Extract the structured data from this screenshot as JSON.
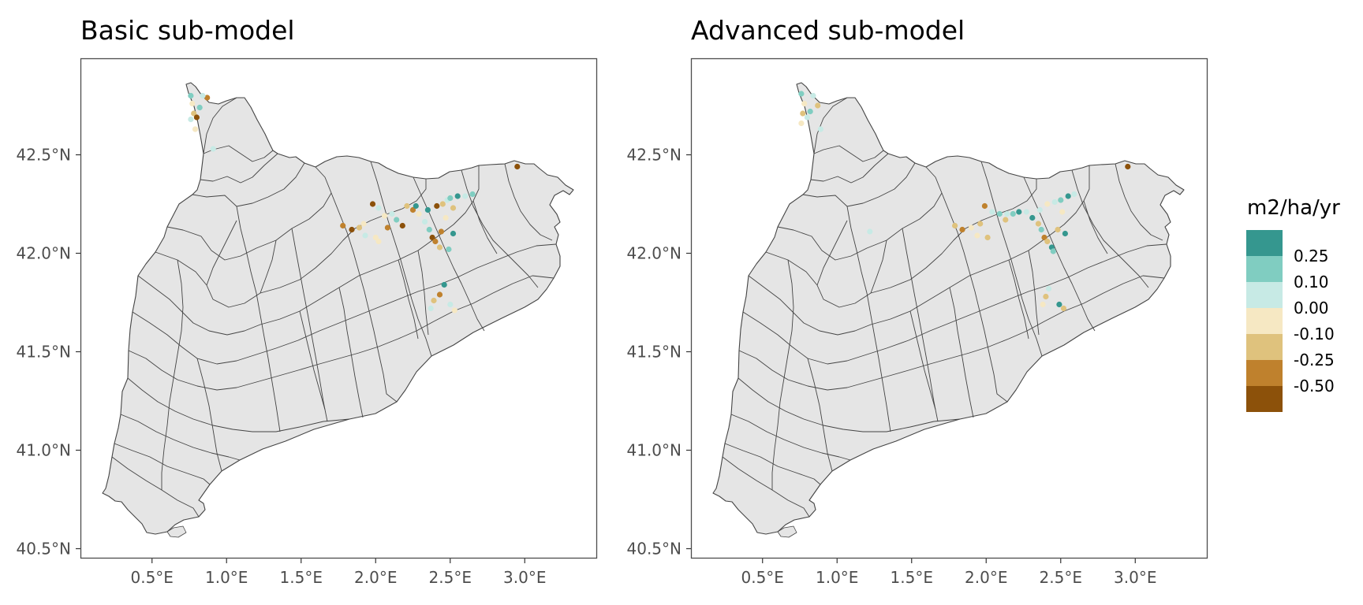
{
  "panels": [
    {
      "title": "Basic sub-model",
      "points": [
        [
          0.76,
          42.8,
          "c1"
        ],
        [
          0.77,
          42.76,
          "c3"
        ],
        [
          0.78,
          42.71,
          "c4"
        ],
        [
          0.8,
          42.69,
          "c6"
        ],
        [
          0.76,
          42.68,
          "c2"
        ],
        [
          0.82,
          42.74,
          "c1"
        ],
        [
          0.87,
          42.79,
          "c5"
        ],
        [
          0.79,
          42.63,
          "c3"
        ],
        [
          0.91,
          42.53,
          "c2"
        ],
        [
          0.84,
          42.8,
          "c2"
        ],
        [
          1.78,
          42.14,
          "c5"
        ],
        [
          1.84,
          42.12,
          "c6"
        ],
        [
          1.89,
          42.13,
          "c4"
        ],
        [
          1.92,
          42.15,
          "c3"
        ],
        [
          1.98,
          42.25,
          "c6"
        ],
        [
          2.02,
          42.23,
          "c2"
        ],
        [
          2.06,
          42.19,
          "c3"
        ],
        [
          2.11,
          42.2,
          "c2"
        ],
        [
          2.14,
          42.17,
          "c1"
        ],
        [
          2.18,
          42.14,
          "c6"
        ],
        [
          2.21,
          42.24,
          "c4"
        ],
        [
          2.25,
          42.22,
          "c5"
        ],
        [
          2.29,
          42.2,
          "c3"
        ],
        [
          2.33,
          42.16,
          "c2"
        ],
        [
          2.36,
          42.12,
          "c1"
        ],
        [
          2.38,
          42.08,
          "c6"
        ],
        [
          2.4,
          42.06,
          "c5"
        ],
        [
          2.43,
          42.03,
          "c4"
        ],
        [
          2.35,
          42.22,
          "c0"
        ],
        [
          2.41,
          42.24,
          "c6"
        ],
        [
          2.45,
          42.25,
          "c4"
        ],
        [
          2.48,
          42.27,
          "c2"
        ],
        [
          2.5,
          42.28,
          "c1"
        ],
        [
          2.55,
          42.29,
          "c0"
        ],
        [
          2.6,
          42.29,
          "c2"
        ],
        [
          2.65,
          42.3,
          "c1"
        ],
        [
          2.52,
          42.23,
          "c4"
        ],
        [
          2.47,
          42.18,
          "c3"
        ],
        [
          2.44,
          42.11,
          "c5"
        ],
        [
          2.52,
          42.1,
          "c0"
        ],
        [
          2.49,
          42.02,
          "c1"
        ],
        [
          2.46,
          41.84,
          "c0"
        ],
        [
          2.43,
          41.79,
          "c5"
        ],
        [
          2.39,
          41.76,
          "c4"
        ],
        [
          2.37,
          41.72,
          "c2"
        ],
        [
          2.5,
          41.74,
          "c2"
        ],
        [
          2.53,
          41.71,
          "c3"
        ],
        [
          1.93,
          42.09,
          "c2"
        ],
        [
          2.0,
          42.08,
          "c3"
        ],
        [
          2.08,
          42.13,
          "c5"
        ],
        [
          2.95,
          42.44,
          "c6"
        ],
        [
          2.27,
          42.24,
          "c0"
        ],
        [
          2.02,
          42.06,
          "c3"
        ]
      ]
    },
    {
      "title": "Advanced sub-model",
      "points": [
        [
          0.76,
          42.81,
          "c1"
        ],
        [
          0.78,
          42.76,
          "c3"
        ],
        [
          0.77,
          42.71,
          "c4"
        ],
        [
          0.8,
          42.69,
          "c2"
        ],
        [
          0.76,
          42.66,
          "c3"
        ],
        [
          0.84,
          42.8,
          "c2"
        ],
        [
          0.87,
          42.75,
          "c4"
        ],
        [
          0.89,
          42.63,
          "c2"
        ],
        [
          0.82,
          42.72,
          "c1"
        ],
        [
          1.22,
          42.11,
          "c2"
        ],
        [
          1.79,
          42.14,
          "c4"
        ],
        [
          1.84,
          42.12,
          "c5"
        ],
        [
          1.9,
          42.13,
          "c3"
        ],
        [
          1.96,
          42.15,
          "c4"
        ],
        [
          1.99,
          42.24,
          "c5"
        ],
        [
          2.04,
          42.21,
          "c2"
        ],
        [
          2.09,
          42.2,
          "c1"
        ],
        [
          2.14,
          42.2,
          "c2"
        ],
        [
          2.18,
          42.2,
          "c1"
        ],
        [
          2.22,
          42.21,
          "c0"
        ],
        [
          2.27,
          42.21,
          "c2"
        ],
        [
          2.31,
          42.18,
          "c0"
        ],
        [
          2.35,
          42.15,
          "c4"
        ],
        [
          2.37,
          42.12,
          "c1"
        ],
        [
          2.39,
          42.08,
          "c5"
        ],
        [
          2.41,
          42.06,
          "c4"
        ],
        [
          2.44,
          42.03,
          "c0"
        ],
        [
          2.36,
          42.22,
          "c2"
        ],
        [
          2.41,
          42.25,
          "c3"
        ],
        [
          2.46,
          42.26,
          "c2"
        ],
        [
          2.5,
          42.27,
          "c1"
        ],
        [
          2.55,
          42.29,
          "c0"
        ],
        [
          2.59,
          42.3,
          "c2"
        ],
        [
          2.51,
          42.21,
          "c3"
        ],
        [
          2.48,
          42.12,
          "c4"
        ],
        [
          2.53,
          42.1,
          "c0"
        ],
        [
          2.45,
          42.01,
          "c1"
        ],
        [
          2.42,
          41.82,
          "c2"
        ],
        [
          2.4,
          41.78,
          "c4"
        ],
        [
          2.38,
          41.74,
          "c3"
        ],
        [
          2.49,
          41.74,
          "c0"
        ],
        [
          2.52,
          41.72,
          "c4"
        ],
        [
          2.95,
          42.44,
          "c6"
        ],
        [
          2.13,
          42.17,
          "c4"
        ],
        [
          1.94,
          42.09,
          "c3"
        ],
        [
          2.01,
          42.08,
          "c4"
        ]
      ]
    }
  ],
  "axes": {
    "x_ticks": [
      "0.5°E",
      "1.0°E",
      "1.5°E",
      "2.0°E",
      "2.5°E",
      "3.0°E"
    ],
    "x_values": [
      0.5,
      1.0,
      1.5,
      2.0,
      2.5,
      3.0
    ],
    "y_ticks": [
      "42.5°N",
      "42.0°N",
      "41.5°N",
      "41.0°N",
      "40.5°N"
    ],
    "y_values": [
      42.5,
      42.0,
      41.5,
      41.0,
      40.5
    ],
    "lon_range": [
      0.02,
      3.48
    ],
    "lat_range": [
      40.45,
      42.99
    ]
  },
  "legend": {
    "title": "m2/ha/yr",
    "labels": [
      "0.25",
      "0.10",
      "0.00",
      "-0.10",
      "-0.25",
      "-0.50"
    ],
    "colors": {
      "c0": "#35978f",
      "c1": "#80cdc1",
      "c2": "#c7eae5",
      "c3": "#f6e8c3",
      "c4": "#dfc27d",
      "c5": "#bf812d",
      "c6": "#8c510a"
    },
    "color_order": [
      "c0",
      "c1",
      "c2",
      "c3",
      "c4",
      "c5",
      "c6"
    ]
  },
  "region_fill": "#e5e5e5",
  "border_color": "#444444"
}
